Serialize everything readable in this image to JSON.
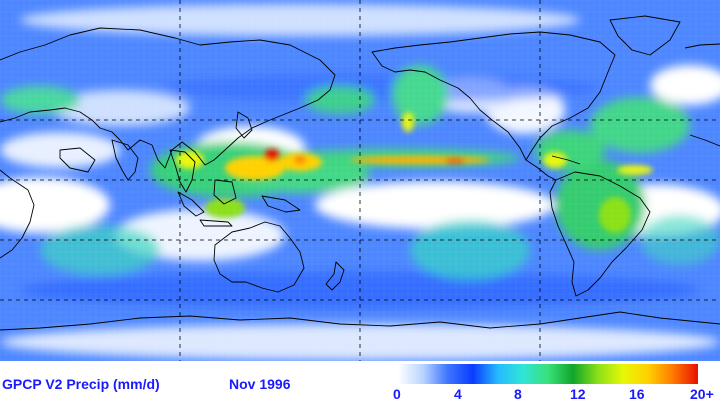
{
  "title": "GPCP V2 Precip (mm/d)",
  "date": "Nov 1996",
  "colorbar": {
    "ticks": [
      "0",
      "4",
      "8",
      "12",
      "16",
      "20+"
    ],
    "min": 0,
    "max": 20,
    "colors": [
      "#ffffff",
      "#b8d4ff",
      "#3e74ff",
      "#0b3cff",
      "#25bbff",
      "#2fe5d7",
      "#39e07a",
      "#10a62a",
      "#8be019",
      "#e7f707",
      "#ffd100",
      "#ff7a00",
      "#e80f00"
    ]
  },
  "map": {
    "projection": "equirectangular, Pacific-centered",
    "graticule": "dashed lines every 30° longitude/latitude",
    "colors": {
      "land_outline": "#000000",
      "grid": "#000000"
    }
  }
}
